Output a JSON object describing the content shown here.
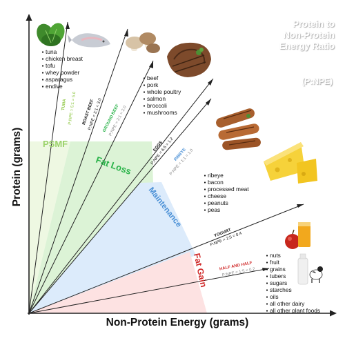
{
  "title": {
    "lines": [
      "Protein to",
      "Non-Protein",
      "Energy Ratio"
    ],
    "abbrev": "(P:NPE)"
  },
  "axes": {
    "ylabel": "Protein (grams)",
    "xlabel": "Non-Protein Energy (grams)"
  },
  "zones": [
    {
      "label": "PSMF",
      "color": "#9bd26a",
      "fill": "#eef8e2"
    },
    {
      "label": "Fat Loss",
      "color": "#2bb34a",
      "fill": "#dcf3d6"
    },
    {
      "label": "Maintenance",
      "color": "#4a90d6",
      "fill": "#dcebfb"
    },
    {
      "label": "Fat Gain",
      "color": "#d02a2a",
      "fill": "#fde2e2"
    }
  ],
  "ratio_lines": [
    {
      "food": "TUNA",
      "ratio": "P:NPE = 5:1 = 5.0",
      "food_color": "#8cc63f",
      "ratio_color": "#8cc63f"
    },
    {
      "food": "ROAST BEEF",
      "ratio": "P:NPE = 3:1 = 3.0",
      "food_color": "#111111",
      "ratio_color": "#111111"
    },
    {
      "food": "GROUND BEEF",
      "ratio": "P:NPE = 2:1 = 2.0",
      "food_color": "#2bb34a",
      "ratio_color": "#888888"
    },
    {
      "food": "EGGS",
      "ratio": "P:NPE = 6:5 = 1.2",
      "food_color": "#111111",
      "ratio_color": "#111111"
    },
    {
      "food": "RIBEYE",
      "ratio": "P:NPE = 1:1 = 1.0",
      "food_color": "#4a90d6",
      "ratio_color": "#888888"
    },
    {
      "food": "YOGURT",
      "ratio": "P:NPE = 2:5 = 0.4",
      "food_color": "#111111",
      "ratio_color": "#111111"
    },
    {
      "food": "HALF AND HALF",
      "ratio": "P:NPE = 1:5 = 0.2",
      "food_color": "#d02a2a",
      "ratio_color": "#888888"
    }
  ],
  "food_lists": [
    [
      "tuna",
      "chicken breast",
      "tofu",
      "whey powder",
      "asparagus",
      "endive"
    ],
    [
      "beef",
      "pork",
      "whole poultry",
      "salmon",
      "broccoli",
      "mushrooms"
    ],
    [
      "ribeye",
      "bacon",
      "processed meat",
      "cheese",
      "peanuts",
      "peas"
    ],
    [
      "nuts",
      "fruit",
      "grains",
      "tubers",
      "sugars",
      "starches",
      "oils",
      "all other dairy",
      "all other plant foods"
    ]
  ],
  "colors": {
    "title": "#ffffff",
    "title_shadow": "#9a9a9a",
    "axis": "#222222",
    "ray": "#222222"
  }
}
